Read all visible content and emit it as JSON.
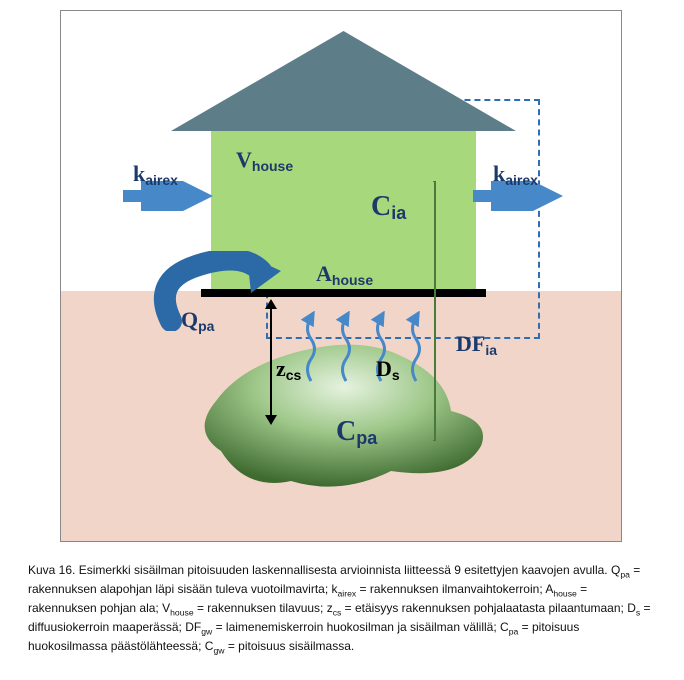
{
  "diagram": {
    "colors": {
      "bg": "#ffffff",
      "ground": "#f2d5c9",
      "house_wall": "#a7d87c",
      "roof": "#5d7d89",
      "slab": "#000000",
      "dashed_box": "#2e6fb4",
      "label_blue": "#1b3a6b",
      "arrow_blue": "#4688c8",
      "arrow_blue_dark": "#2b6aa6",
      "plume_dark": "#4a7a3a",
      "plume_light": "#cfe6c9"
    },
    "labels": {
      "k_airex_left": {
        "base": "k",
        "sub": "airex"
      },
      "k_airex_right": {
        "base": "k",
        "sub": "airex"
      },
      "V_house": {
        "base": "V",
        "sub": "house"
      },
      "C_ia": {
        "base": "C",
        "sub": "ia"
      },
      "A_house": {
        "base": "A",
        "sub": "house"
      },
      "Q_pa": {
        "base": "Q",
        "sub": "pa"
      },
      "DF_ia": {
        "base": "DF",
        "sub": "ia"
      },
      "z_cs": {
        "base": "z",
        "sub": "cs"
      },
      "D_s": {
        "base": "D",
        "sub": "s"
      },
      "C_pa": {
        "base": "C",
        "sub": "pa"
      }
    }
  },
  "caption": {
    "lead": "Kuva 16. Esimerkki sisäilman pitoisuuden laskennallisesta arvioinnista liitteessä 9 esitettyjen kaavojen avulla. ",
    "defs": [
      {
        "sym_base": "Q",
        "sym_sub": "pa",
        "text": " = rakennuksen alapohjan läpi sisään tuleva vuotoilmavirta; "
      },
      {
        "sym_base": "k",
        "sym_sub": "airex",
        "text": " = rakennuksen ilmanvaihtokerroin; "
      },
      {
        "sym_base": "A",
        "sym_sub": "house",
        "text": " = rakennuksen pohjan ala; "
      },
      {
        "sym_base": "V",
        "sym_sub": "house",
        "text": " = rakennuksen tilavuus; "
      },
      {
        "sym_base": "z",
        "sym_sub": "cs",
        "text": " = etäisyys rakennuksen pohjalaatasta pilaantumaan; "
      },
      {
        "sym_base": "D",
        "sym_sub": "s",
        "text": " = diffuusiokerroin maaperässä; "
      },
      {
        "sym_base": "DF",
        "sym_sub": "gw",
        "text": " = laimenemiskerroin huokosilman ja sisäilman välillä; "
      },
      {
        "sym_base": "C",
        "sym_sub": "pa",
        "text": " = pitoisuus huokosilmassa päästölähteessä; "
      },
      {
        "sym_base": "C",
        "sym_sub": "gw",
        "text": " = pitoisuus sisäilmassa."
      }
    ]
  }
}
